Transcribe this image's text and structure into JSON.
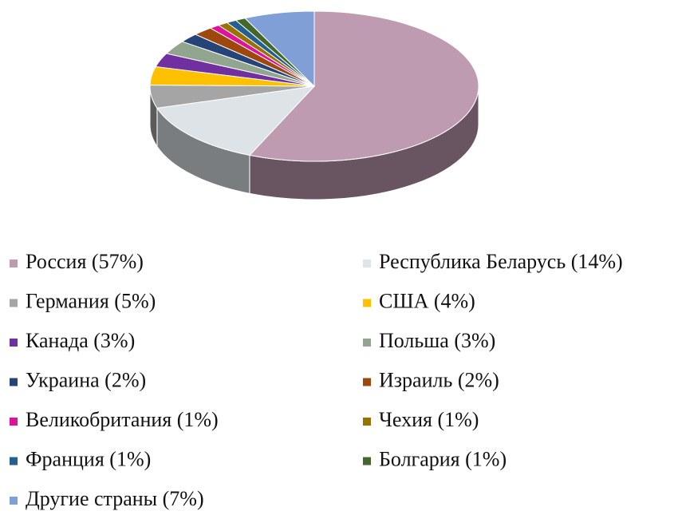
{
  "chart_data": {
    "type": "pie3d",
    "categories": [
      "Россия (57%)",
      "Республика Беларусь (14%)",
      "Германия (5%)",
      "США (4%)",
      "Канада (3%)",
      "Польша (3%)",
      "Украина (2%)",
      "Израиль (2%)",
      "Великобритания (1%)",
      "Чехия (1%)",
      "Франция (1%)",
      "Болгария (1%)",
      "Другие страны (7%)"
    ],
    "values": [
      57,
      14,
      5,
      4,
      3,
      3,
      2,
      2,
      1,
      1,
      1,
      1,
      7
    ],
    "colors": [
      "#bf9bb1",
      "#dde3e6",
      "#a5a5a5",
      "#ffc000",
      "#7030a0",
      "#92a58f",
      "#264478",
      "#9e480e",
      "#e0119a",
      "#997300",
      "#255e91",
      "#43682b",
      "#7f9fd6"
    ],
    "legend": "bottom"
  }
}
